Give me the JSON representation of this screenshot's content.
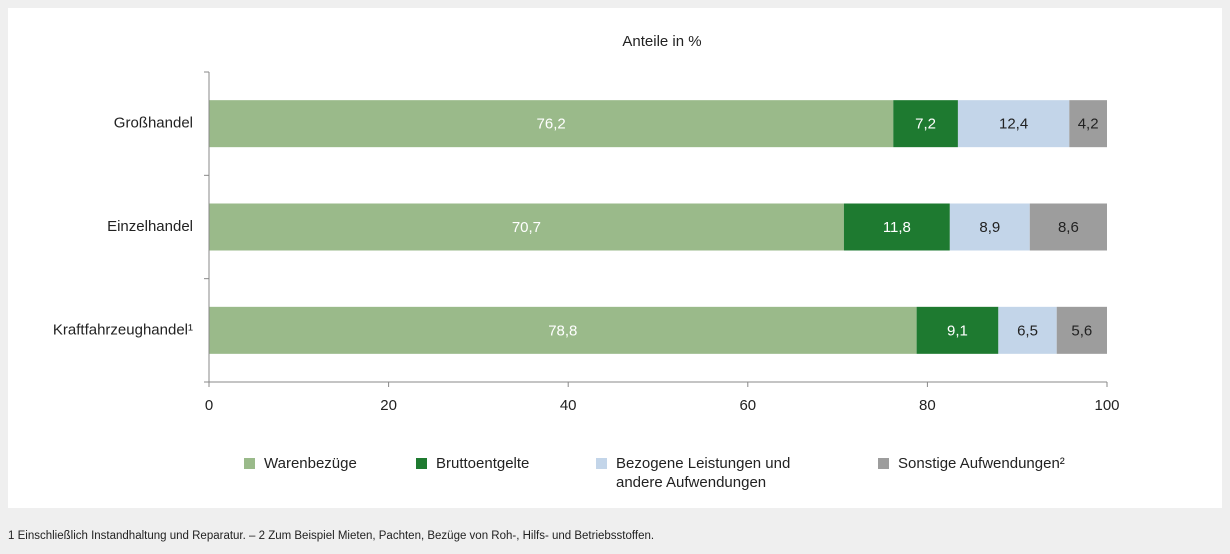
{
  "chart_data": {
    "type": "stacked-bar-horizontal",
    "title": "Anteile in %",
    "categories": [
      "Großhandel",
      "Einzelhandel",
      "Kraftfahrzeughandel¹"
    ],
    "series": [
      {
        "name": "Warenbezüge",
        "color": "#9aba8a",
        "label_color": "#ffffff",
        "values": [
          76.2,
          70.7,
          78.8
        ],
        "value_labels": [
          "76,2",
          "70,7",
          "78,8"
        ]
      },
      {
        "name": "Bruttoentgelte",
        "color": "#1e7a30",
        "label_color": "#ffffff",
        "values": [
          7.2,
          11.8,
          9.1
        ],
        "value_labels": [
          "7,2",
          "11,8",
          "9,1"
        ]
      },
      {
        "name": "Bezogene Leistungen und andere Aufwendungen",
        "color": "#c3d5e9",
        "label_color": "#222222",
        "values": [
          12.4,
          8.9,
          6.5
        ],
        "value_labels": [
          "12,4",
          "8,9",
          "6,5"
        ]
      },
      {
        "name": "Sonstige Aufwendungen²",
        "color": "#9d9d9d",
        "label_color": "#222222",
        "values": [
          4.2,
          8.6,
          5.6
        ],
        "value_labels": [
          "4,2",
          "8,6",
          "5,6"
        ]
      }
    ],
    "xlim": [
      0,
      100
    ],
    "xticks": [
      0,
      20,
      40,
      60,
      80,
      100
    ],
    "footnote": "1 Einschließlich Instandhaltung und Reparatur. – 2 Zum Beispiel Mieten, Pachten, Bezüge von Roh-, Hilfs- und Betriebsstoffen."
  }
}
